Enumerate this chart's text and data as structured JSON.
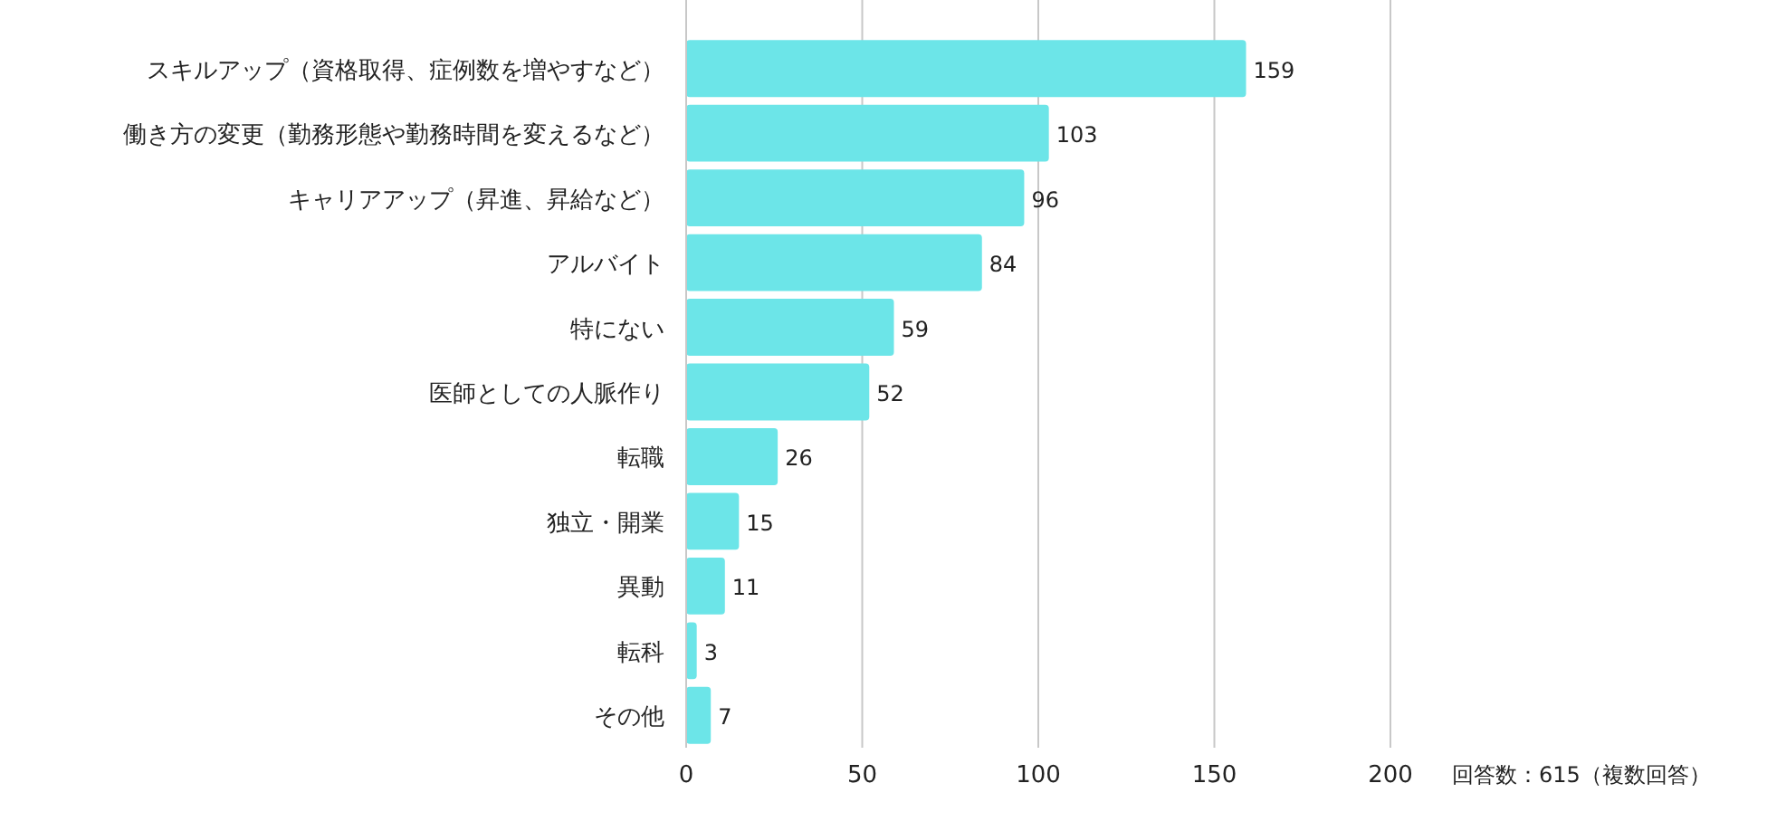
{
  "chart_data": {
    "type": "bar",
    "orientation": "horizontal",
    "categories": [
      "スキルアップ（資格取得、症例数を増やすなど）",
      "働き方の変更（勤務形態や勤務時間を変えるなど）",
      "キャリアアップ（昇進、昇給など）",
      "アルバイト",
      "特にない",
      "医師としての人脈作り",
      "転職",
      "独立・開業",
      "異動",
      "転科",
      "その他"
    ],
    "values": [
      159,
      103,
      96,
      84,
      59,
      52,
      26,
      15,
      11,
      3,
      7
    ],
    "color": "#6ce5e8",
    "xlim": [
      0,
      200
    ],
    "xticks": [
      0,
      50,
      100,
      150,
      200
    ],
    "grid": "x",
    "data_labels": true,
    "annotations": [
      "回答数：615（複数回答）"
    ]
  }
}
